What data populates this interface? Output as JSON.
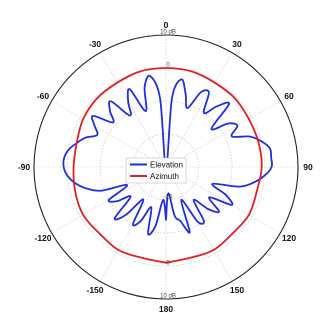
{
  "chart_data": {
    "type": "polar-line",
    "title": "",
    "angle_unit": "degrees",
    "angle_ticks": [
      0,
      30,
      60,
      90,
      120,
      150,
      180,
      -150,
      -120,
      -90,
      -60,
      -30
    ],
    "angle_tick_labels": [
      "0",
      "30",
      "60",
      "90",
      "120",
      "150",
      "180",
      "-150",
      "-120",
      "-90",
      "-60",
      "-30"
    ],
    "radial_unit": "dB",
    "radial_range": [
      -30,
      10
    ],
    "radial_ticks": [
      -30,
      -20,
      -10,
      0,
      10
    ],
    "radial_tick_labels": [
      {
        "text": "10 dB",
        "at": 10,
        "angle": 0
      },
      {
        "text": "0",
        "at": 0,
        "angle": 0
      },
      {
        "text": "-20",
        "at": -20,
        "angle": 180
      },
      {
        "text": "0",
        "at": 0,
        "angle": 180
      },
      {
        "text": "10 dB",
        "at": 10,
        "angle": 180
      }
    ],
    "grid": true,
    "legend_position": "center",
    "series": [
      {
        "name": "Elevation",
        "color": "#1f2ee0",
        "angles": [
          -180,
          -175,
          -170,
          -165,
          -160,
          -155,
          -150,
          -145,
          -140,
          -135,
          -130,
          -125,
          -120,
          -115,
          -110,
          -105,
          -100,
          -95,
          -90,
          -85,
          -80,
          -75,
          -70,
          -65,
          -60,
          -55,
          -50,
          -45,
          -40,
          -35,
          -30,
          -25,
          -20,
          -15,
          -10,
          -5,
          0,
          5,
          10,
          15,
          20,
          25,
          30,
          35,
          40,
          45,
          50,
          55,
          60,
          65,
          70,
          75,
          80,
          85,
          90,
          95,
          100,
          105,
          110,
          115,
          120,
          125,
          130,
          135,
          140,
          145,
          150,
          155,
          160,
          165,
          170,
          175,
          180
        ],
        "values": [
          -14,
          -20,
          -12,
          -9,
          -17,
          -12,
          -10,
          -18,
          -11,
          -8,
          -16,
          -12,
          -10,
          -17,
          -9,
          -5,
          -2,
          0,
          1,
          1,
          0,
          -2,
          -4,
          -7,
          -5,
          -3,
          -9,
          -6,
          -4,
          -11,
          -7,
          -4,
          -12,
          -5,
          -2,
          -9,
          -30,
          -9,
          -3,
          -7,
          -11,
          -5,
          -4,
          -10,
          -6,
          -3,
          -12,
          -7,
          -5,
          -8,
          -3,
          0,
          2,
          2,
          2,
          0,
          -3,
          -7,
          -15,
          -10,
          -7,
          -14,
          -9,
          -12,
          -17,
          -10,
          -11,
          -19,
          -9,
          -13,
          -15,
          -22,
          -14
        ]
      },
      {
        "name": "Azimuth",
        "color": "#e01f26",
        "angles": [
          -180,
          -165,
          -150,
          -135,
          -120,
          -105,
          -90,
          -75,
          -60,
          -45,
          -30,
          -15,
          0,
          15,
          30,
          45,
          60,
          75,
          90,
          105,
          120,
          135,
          150,
          165,
          180
        ],
        "values": [
          -1,
          -1.5,
          -1,
          -1.5,
          -1,
          -1.5,
          -2,
          -2,
          -1,
          -0.5,
          -0.5,
          0,
          0,
          0,
          -0.5,
          -0.5,
          -1,
          -1,
          -1,
          -1.5,
          -1,
          -1.5,
          -1,
          -1.5,
          -1
        ]
      }
    ]
  }
}
